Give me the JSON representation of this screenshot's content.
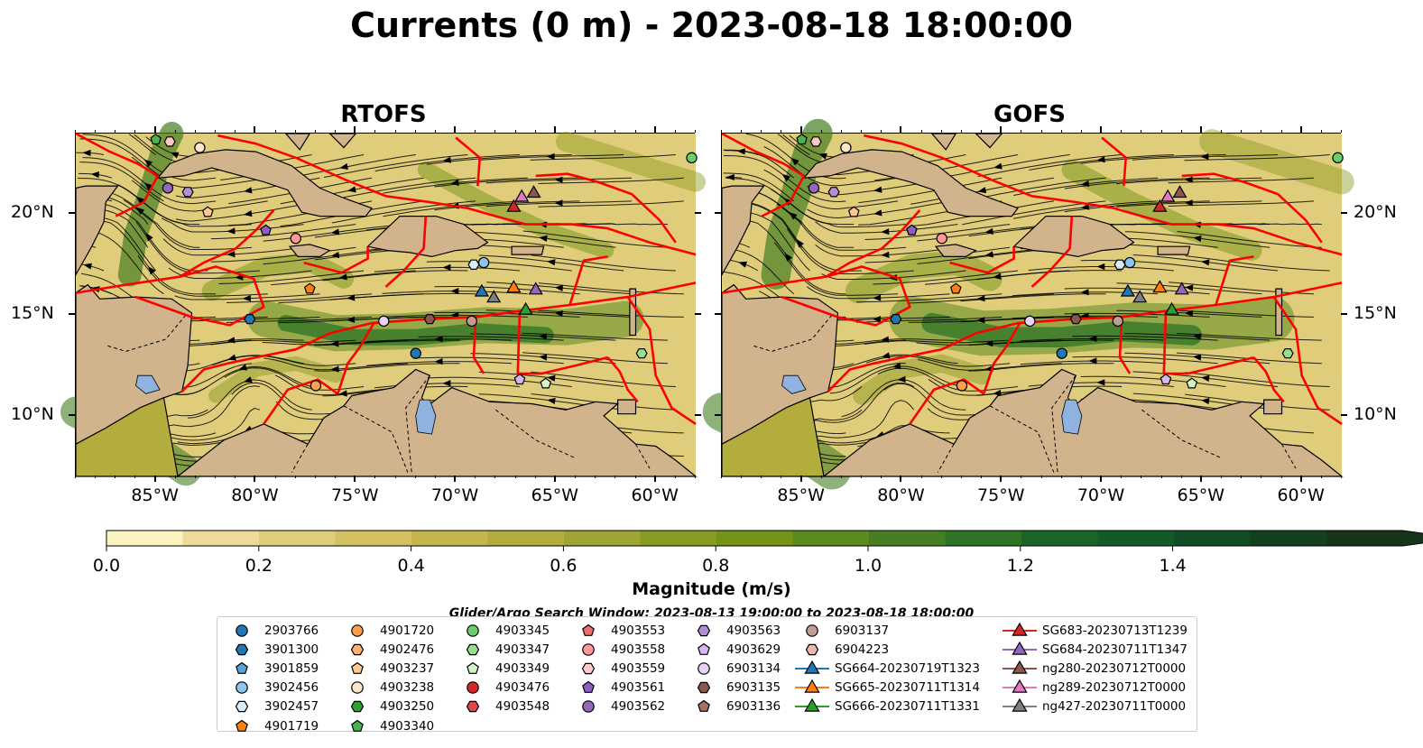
{
  "title": "Currents (0 m) - 2023-08-18 18:00:00",
  "panels": [
    {
      "title": "RTOFS"
    },
    {
      "title": "GOFS"
    }
  ],
  "axes": {
    "lon_range": [
      -89,
      -58
    ],
    "lat_range": [
      7,
      24
    ],
    "x_ticks": [
      "85°W",
      "80°W",
      "75°W",
      "70°W",
      "65°W",
      "60°W"
    ],
    "x_tick_values": [
      -85,
      -80,
      -75,
      -70,
      -65,
      -60
    ],
    "y_ticks": [
      "20°N",
      "15°N",
      "10°N"
    ],
    "y_tick_values": [
      20,
      15,
      10
    ]
  },
  "colorbar": {
    "label": "Magnitude (m/s)",
    "ticks": [
      "0.0",
      "0.2",
      "0.4",
      "0.6",
      "0.8",
      "1.0",
      "1.2",
      "1.4"
    ],
    "tick_values": [
      0.0,
      0.2,
      0.4,
      0.6,
      0.8,
      1.0,
      1.2,
      1.4
    ],
    "colors": [
      "#fbf3c0",
      "#eedb97",
      "#e0cd7b",
      "#d3c060",
      "#c5b54a",
      "#b3ad3d",
      "#9fa533",
      "#8a9b22",
      "#739416",
      "#5b8a1f",
      "#457f22",
      "#2e7426",
      "#1b6626",
      "#125a26",
      "#114c24",
      "#13401f",
      "#16351b"
    ]
  },
  "search_window": "Glider/Argo Search Window: 2023-08-13 19:00:00 to 2023-08-18 18:00:00",
  "colors": {
    "land": "#d2b48c",
    "eez_lines": "#ff0000",
    "lakes": "#8fb2e0"
  },
  "legend": [
    {
      "label": "2903766",
      "marker": "circle",
      "color": "#1f77b4"
    },
    {
      "label": "3901300",
      "marker": "hexagon",
      "color": "#1f77b4"
    },
    {
      "label": "3901859",
      "marker": "pentagon",
      "color": "#5aa3d6"
    },
    {
      "label": "3902456",
      "marker": "circle",
      "color": "#8ec5ec"
    },
    {
      "label": "3902457",
      "marker": "hexagon",
      "color": "#d8ecfa"
    },
    {
      "label": "4901719",
      "marker": "pentagon",
      "color": "#ff7f0e"
    },
    {
      "label": "4901720",
      "marker": "circle",
      "color": "#ff9f4a"
    },
    {
      "label": "4902476",
      "marker": "hexagon",
      "color": "#ffae6e"
    },
    {
      "label": "4903237",
      "marker": "pentagon",
      "color": "#ffc891"
    },
    {
      "label": "4903238",
      "marker": "circle",
      "color": "#ffe6c8"
    },
    {
      "label": "4903250",
      "marker": "hexagon",
      "color": "#2ca02c"
    },
    {
      "label": "4903340",
      "marker": "pentagon",
      "color": "#4cb34c"
    },
    {
      "label": "4903345",
      "marker": "circle",
      "color": "#6dcc6d"
    },
    {
      "label": "4903347",
      "marker": "hexagon",
      "color": "#98df8a"
    },
    {
      "label": "4903349",
      "marker": "pentagon",
      "color": "#d2f4c8"
    },
    {
      "label": "4903476",
      "marker": "circle",
      "color": "#d62728"
    },
    {
      "label": "4903548",
      "marker": "hexagon",
      "color": "#e0474a"
    },
    {
      "label": "4903553",
      "marker": "pentagon",
      "color": "#ee6c6c"
    },
    {
      "label": "4903558",
      "marker": "circle",
      "color": "#ff9896"
    },
    {
      "label": "4903559",
      "marker": "hexagon",
      "color": "#ffc8c6"
    },
    {
      "label": "4903561",
      "marker": "pentagon",
      "color": "#8c5fc0"
    },
    {
      "label": "4903562",
      "marker": "circle",
      "color": "#9467bd"
    },
    {
      "label": "4903563",
      "marker": "hexagon",
      "color": "#b190d6"
    },
    {
      "label": "4903629",
      "marker": "pentagon",
      "color": "#d6b8f0"
    },
    {
      "label": "6903134",
      "marker": "circle",
      "color": "#e8d2f6"
    },
    {
      "label": "6903135",
      "marker": "hexagon",
      "color": "#8c564b"
    },
    {
      "label": "6903136",
      "marker": "pentagon",
      "color": "#a8705e"
    },
    {
      "label": "6903137",
      "marker": "circle",
      "color": "#c49c94"
    },
    {
      "label": "6904223",
      "marker": "hexagon",
      "color": "#e6b8ae"
    },
    {
      "label": "SG664-20230719T1323",
      "marker": "triangle-line",
      "color": "#1f77b4"
    },
    {
      "label": "SG665-20230711T1314",
      "marker": "triangle-line",
      "color": "#ff7f0e"
    },
    {
      "label": "SG666-20230711T1331",
      "marker": "triangle-line",
      "color": "#2ca02c"
    },
    {
      "label": "SG683-20230713T1239",
      "marker": "triangle-line",
      "color": "#d62728"
    },
    {
      "label": "SG684-20230711T1347",
      "marker": "triangle-line",
      "color": "#9467bd"
    },
    {
      "label": "ng280-20230712T0000",
      "marker": "triangle-line",
      "color": "#8c564b"
    },
    {
      "label": "ng289-20230712T0000",
      "marker": "triangle-line",
      "color": "#e377c2"
    },
    {
      "label": "ng427-20230711T0000",
      "marker": "triangle-line",
      "color": "#7f7f7f"
    }
  ],
  "markers": [
    {
      "id": "2903766",
      "lon": -72.0,
      "lat": 13.1
    },
    {
      "id": "3901300",
      "lon": -80.3,
      "lat": 14.8
    },
    {
      "id": "3902456",
      "lon": -68.6,
      "lat": 17.6
    },
    {
      "id": "3902457",
      "lon": -69.1,
      "lat": 17.5
    },
    {
      "id": "4901719",
      "lon": -77.3,
      "lat": 16.3
    },
    {
      "id": "4901720",
      "lon": -77.0,
      "lat": 11.5
    },
    {
      "id": "4903238",
      "lon": -82.8,
      "lat": 23.3
    },
    {
      "id": "4903340",
      "lon": -85.0,
      "lat": 23.7
    },
    {
      "id": "4903345",
      "lon": -58.2,
      "lat": 22.8
    },
    {
      "id": "4903347",
      "lon": -60.7,
      "lat": 13.1
    },
    {
      "id": "4903349",
      "lon": -65.5,
      "lat": 11.6
    },
    {
      "id": "4903558",
      "lon": -78.0,
      "lat": 18.8
    },
    {
      "id": "4903559",
      "lon": -84.3,
      "lat": 23.6
    },
    {
      "id": "4903562",
      "lon": -84.4,
      "lat": 21.3
    },
    {
      "id": "4903563",
      "lon": -83.4,
      "lat": 21.1
    },
    {
      "id": "4903629",
      "lon": -66.8,
      "lat": 11.8
    },
    {
      "id": "4903561",
      "lon": -79.5,
      "lat": 19.2
    },
    {
      "id": "6903134",
      "lon": -73.6,
      "lat": 14.7
    },
    {
      "id": "6903135",
      "lon": -71.3,
      "lat": 14.8
    },
    {
      "id": "6903137",
      "lon": -69.2,
      "lat": 14.7
    },
    {
      "id": "4903237",
      "lon": -82.4,
      "lat": 20.1
    },
    {
      "id": "SG664-20230719T1323",
      "lon": -68.7,
      "lat": 16.2
    },
    {
      "id": "SG665-20230711T1314",
      "lon": -67.1,
      "lat": 16.4
    },
    {
      "id": "SG666-20230711T1331",
      "lon": -66.5,
      "lat": 15.3
    },
    {
      "id": "SG683-20230713T1239",
      "lon": -67.1,
      "lat": 20.4
    },
    {
      "id": "SG684-20230711T1347",
      "lon": -66.0,
      "lat": 16.3
    },
    {
      "id": "ng280-20230712T0000",
      "lon": -66.1,
      "lat": 21.1
    },
    {
      "id": "ng289-20230712T0000",
      "lon": -66.7,
      "lat": 20.9
    },
    {
      "id": "ng427-20230711T0000",
      "lon": -68.1,
      "lat": 15.9
    }
  ]
}
